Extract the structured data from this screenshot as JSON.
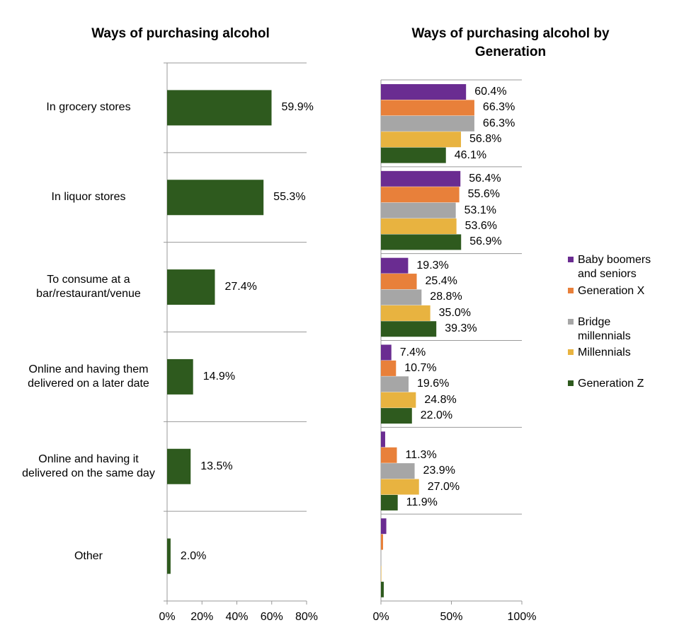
{
  "chart_data": [
    {
      "type": "bar",
      "orientation": "horizontal",
      "title": "Ways of purchasing alcohol",
      "categories": [
        "In grocery stores",
        "In liquor stores",
        "To consume at a bar/restaurant/venue",
        "Online and having them delivered on a later date",
        "Online and having it delivered on the same day",
        "Other"
      ],
      "values": [
        59.9,
        55.3,
        27.4,
        14.9,
        13.5,
        2.0
      ],
      "value_labels": [
        "59.9%",
        "55.3%",
        "27.4%",
        "14.9%",
        "13.5%",
        "2.0%"
      ],
      "color": "#2e5a1e",
      "xlim": [
        0,
        80
      ],
      "xticks": [
        {
          "value": 0,
          "label": "0%"
        },
        {
          "value": 20,
          "label": "20%"
        },
        {
          "value": 40,
          "label": "40%"
        },
        {
          "value": 60,
          "label": "60%"
        },
        {
          "value": 80,
          "label": "80%"
        }
      ]
    },
    {
      "type": "bar",
      "orientation": "horizontal",
      "title": "Ways of purchasing alcohol by Generation",
      "series": [
        {
          "name": "Baby boomers and seniors",
          "color": "#6a2c91",
          "values": [
            60.4,
            56.4,
            19.3,
            7.4,
            3.0,
            3.8
          ],
          "value_labels": [
            "60.4%",
            "56.4%",
            "19.3%",
            "7.4%",
            null,
            null
          ]
        },
        {
          "name": "Generation X",
          "color": "#e8803a",
          "values": [
            66.3,
            55.6,
            25.4,
            10.7,
            11.3,
            1.5
          ],
          "value_labels": [
            "66.3%",
            "55.6%",
            "25.4%",
            "10.7%",
            "11.3%",
            null
          ]
        },
        {
          "name": "Bridge millennials",
          "color": "#a6a6a6",
          "values": [
            66.3,
            53.1,
            28.8,
            19.6,
            23.9,
            0.3
          ],
          "value_labels": [
            "66.3%",
            "53.1%",
            "28.8%",
            "19.6%",
            "23.9%",
            null
          ]
        },
        {
          "name": "Millennials",
          "color": "#e8b340",
          "values": [
            56.8,
            53.6,
            35.0,
            24.8,
            27.0,
            0.3
          ],
          "value_labels": [
            "56.8%",
            "53.6%",
            "35.0%",
            "24.8%",
            "27.0%",
            null
          ]
        },
        {
          "name": "Generation Z",
          "color": "#2e5a1e",
          "values": [
            46.1,
            56.9,
            39.3,
            22.0,
            11.9,
            2.0
          ],
          "value_labels": [
            "46.1%",
            "56.9%",
            "39.3%",
            "22.0%",
            "11.9%",
            null
          ]
        }
      ],
      "xlim": [
        0,
        100
      ],
      "xticks": [
        {
          "value": 0,
          "label": "0%"
        },
        {
          "value": 50,
          "label": "50%"
        },
        {
          "value": 100,
          "label": "100%"
        }
      ],
      "legend": "right"
    }
  ]
}
